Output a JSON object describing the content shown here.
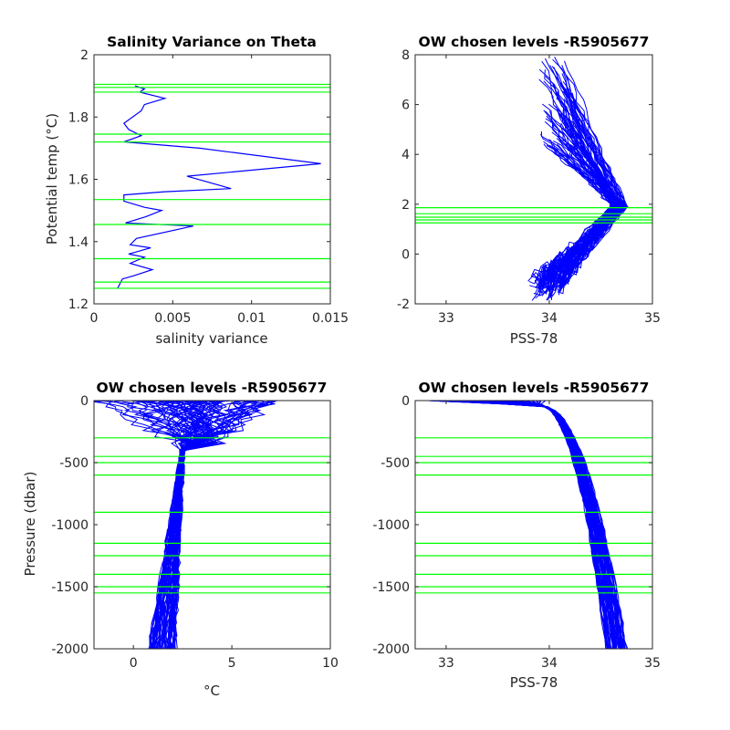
{
  "colors": {
    "profiles": "#0000ff",
    "levels": "#00ff00",
    "axes": "#262626"
  },
  "chart_data": [
    {
      "id": "p1",
      "type": "line",
      "title": "Salinity Variance on Theta",
      "xlabel": "salinity variance",
      "ylabel": "Potential temp (°C)",
      "xlim": [
        0,
        0.015
      ],
      "ylim": [
        1.2,
        2
      ],
      "xticks": [
        0,
        0.005,
        0.01,
        0.015
      ],
      "xtick_labels": [
        "0",
        "0.005",
        "0.01",
        "0.015"
      ],
      "yticks": [
        1.2,
        1.4,
        1.6,
        1.8,
        2
      ],
      "ytick_labels": [
        "1.2",
        "1.4",
        "1.6",
        "1.8",
        "2"
      ],
      "grid": false,
      "series": [
        {
          "x": [
            0.0015,
            0.0018,
            0.0025,
            0.0037,
            0.0023,
            0.0032,
            0.0022,
            0.0036,
            0.0023,
            0.0027,
            0.0063,
            0.002,
            0.0033,
            0.0043,
            0.0032,
            0.0019,
            0.0019,
            0.0045,
            0.0087,
            0.0059,
            0.0144,
            0.0067,
            0.0019,
            0.003,
            0.0022,
            0.0019,
            0.003,
            0.0032,
            0.0045,
            0.0029,
            0.0032,
            0.0026
          ],
          "y": [
            1.25,
            1.28,
            1.29,
            1.31,
            1.33,
            1.35,
            1.36,
            1.38,
            1.39,
            1.41,
            1.45,
            1.46,
            1.48,
            1.5,
            1.51,
            1.53,
            1.55,
            1.56,
            1.57,
            1.61,
            1.65,
            1.7,
            1.72,
            1.74,
            1.76,
            1.78,
            1.82,
            1.84,
            1.86,
            1.88,
            1.89,
            1.9
          ]
        }
      ],
      "hlines": [
        1.25,
        1.27,
        1.345,
        1.455,
        1.535,
        1.72,
        1.745,
        1.88,
        1.895,
        1.905
      ]
    },
    {
      "id": "p2",
      "type": "line",
      "title": "OW chosen levels -R5905677",
      "xlabel": "PSS-78",
      "ylabel": "",
      "xlim": [
        32.7,
        35
      ],
      "ylim": [
        -2,
        8
      ],
      "xticks": [
        33,
        34,
        35
      ],
      "xtick_labels": [
        "33",
        "34",
        "35"
      ],
      "yticks": [
        -2,
        0,
        2,
        4,
        6,
        8
      ],
      "ytick_labels": [
        "-2",
        "0",
        "2",
        "4",
        "6",
        "8"
      ],
      "grid": false,
      "hlines": [
        1.25,
        1.37,
        1.48,
        1.62,
        1.86
      ]
    },
    {
      "id": "p3",
      "type": "line",
      "title": "OW chosen levels -R5905677",
      "xlabel": "°C",
      "ylabel": "Pressure (dbar)",
      "xlim": [
        -2,
        10
      ],
      "ylim": [
        -2000,
        0
      ],
      "xticks": [
        0,
        5,
        10
      ],
      "xtick_labels": [
        "0",
        "5",
        "10"
      ],
      "yticks": [
        -2000,
        -1500,
        -1000,
        -500,
        0
      ],
      "ytick_labels": [
        "-2000",
        "-1500",
        "-1000",
        "-500",
        "0"
      ],
      "grid": false,
      "hlines": [
        -300,
        -450,
        -500,
        -600,
        -900,
        -1150,
        -1250,
        -1400,
        -1500,
        -1550
      ]
    },
    {
      "id": "p4",
      "type": "line",
      "title": "OW chosen levels -R5905677",
      "xlabel": "PSS-78",
      "ylabel": "",
      "xlim": [
        32.7,
        35
      ],
      "ylim": [
        -2000,
        0
      ],
      "xticks": [
        33,
        34,
        35
      ],
      "xtick_labels": [
        "33",
        "34",
        "35"
      ],
      "yticks": [
        -2000,
        -1500,
        -1000,
        -500,
        0
      ],
      "ytick_labels": [
        "-2000",
        "-1500",
        "-1000",
        "-500",
        "0"
      ],
      "grid": false,
      "hlines": [
        -300,
        -450,
        -500,
        -600,
        -900,
        -1150,
        -1250,
        -1400,
        -1500,
        -1550
      ]
    }
  ]
}
